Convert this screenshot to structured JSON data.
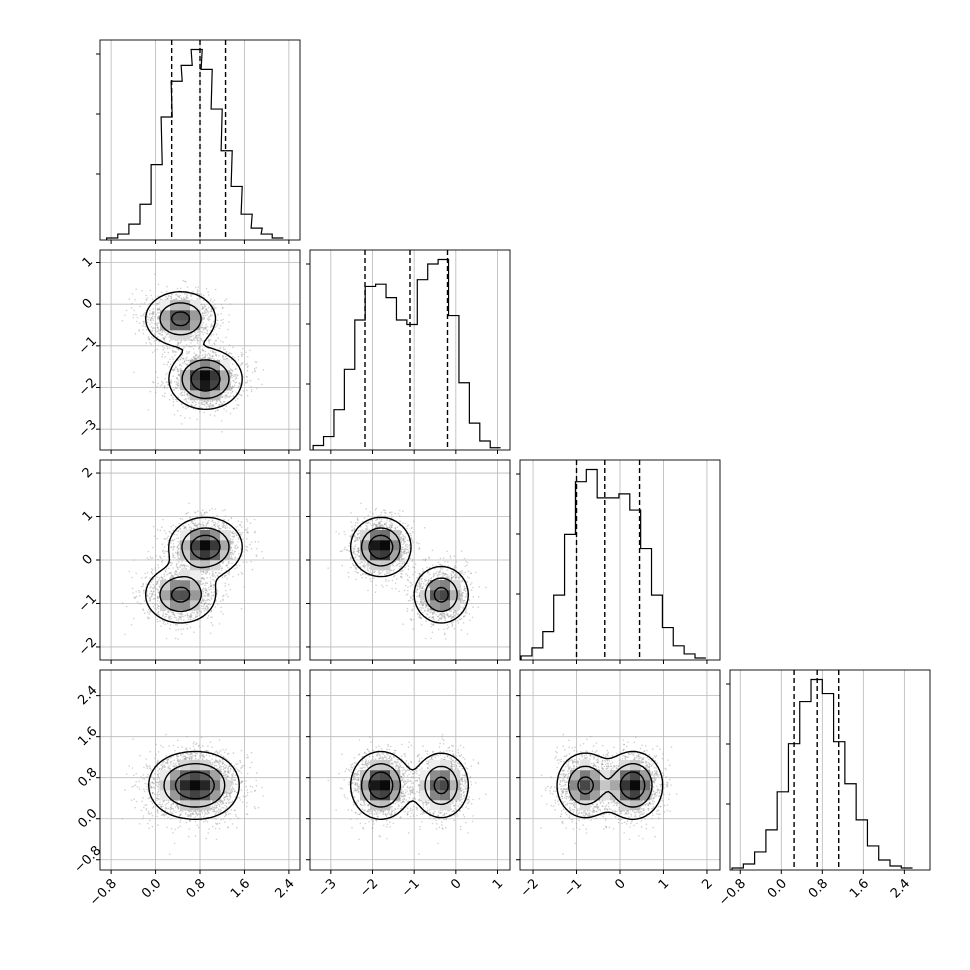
{
  "chart_data": {
    "type": "corner",
    "variables": [
      {
        "range": [
          -1.0,
          2.6
        ],
        "ticks": [
          -0.8,
          0.0,
          0.8,
          1.6,
          2.4
        ],
        "tick_labels": [
          "−0.8",
          "0.0",
          "0.8",
          "1.6",
          "2.4"
        ],
        "quantiles": [
          0.29,
          0.8,
          1.26
        ],
        "hist_bin_centers": [
          -0.78,
          -0.58,
          -0.38,
          -0.18,
          0.02,
          0.2,
          0.38,
          0.56,
          0.74,
          0.92,
          1.1,
          1.28,
          1.46,
          1.64,
          1.82,
          2.0,
          2.2
        ],
        "hist_counts": [
          1,
          3,
          8,
          18,
          38,
          62,
          80,
          88,
          96,
          86,
          66,
          45,
          27,
          13,
          6,
          3,
          1
        ]
      },
      {
        "range": [
          -3.5,
          1.3
        ],
        "ticks": [
          -3,
          -2,
          -1,
          0,
          1
        ],
        "tick_labels": [
          "−3",
          "−2",
          "−1",
          "0",
          "1"
        ],
        "quantiles": [
          -2.18,
          -1.1,
          -0.2
        ],
        "hist_bin_centers": [
          -3.3,
          -3.05,
          -2.8,
          -2.55,
          -2.3,
          -2.05,
          -1.8,
          -1.55,
          -1.3,
          -1.05,
          -0.8,
          -0.55,
          -0.3,
          -0.05,
          0.2,
          0.45,
          0.7,
          0.95
        ],
        "hist_counts": [
          2,
          6,
          18,
          36,
          58,
          73,
          74,
          68,
          58,
          56,
          76,
          83,
          85,
          60,
          30,
          12,
          4,
          1
        ]
      },
      {
        "range": [
          -2.3,
          2.3
        ],
        "ticks": [
          -2,
          -1,
          0,
          1,
          2
        ],
        "tick_labels": [
          "−2",
          "−1",
          "0",
          "1",
          "2"
        ],
        "quantiles": [
          -1.0,
          -0.35,
          0.45
        ],
        "hist_bin_centers": [
          -2.15,
          -1.9,
          -1.65,
          -1.4,
          -1.15,
          -0.9,
          -0.65,
          -0.4,
          -0.15,
          0.1,
          0.35,
          0.6,
          0.85,
          1.1,
          1.35,
          1.6,
          1.85
        ],
        "hist_counts": [
          2,
          6,
          14,
          32,
          62,
          88,
          94,
          80,
          80,
          82,
          74,
          55,
          32,
          16,
          7,
          3,
          1
        ]
      },
      {
        "range": [
          -1.0,
          2.9
        ],
        "ticks": [
          -0.8,
          0.0,
          0.8,
          1.6,
          2.4
        ],
        "tick_labels": [
          "−0.8",
          "0.0",
          "0.8",
          "1.6",
          "2.4"
        ],
        "quantiles": [
          0.25,
          0.7,
          1.12
        ],
        "hist_bin_centers": [
          -0.85,
          -0.63,
          -0.41,
          -0.19,
          0.03,
          0.25,
          0.47,
          0.69,
          0.91,
          1.13,
          1.35,
          1.57,
          1.79,
          2.01,
          2.23,
          2.45
        ],
        "hist_counts": [
          1,
          3,
          9,
          20,
          39,
          63,
          84,
          95,
          88,
          64,
          43,
          25,
          12,
          5,
          2,
          1
        ]
      }
    ],
    "clusters": [
      {
        "weight": 0.45,
        "mean": [
          0.45,
          -0.35,
          -0.8,
          0.65
        ],
        "sd": [
          0.32,
          0.33,
          0.33,
          0.32
        ]
      },
      {
        "weight": 0.55,
        "mean": [
          0.9,
          -1.8,
          0.3,
          0.65
        ],
        "sd": [
          0.32,
          0.35,
          0.33,
          0.32
        ]
      }
    ],
    "grid": true,
    "colors": {
      "points": "#9a9a9a",
      "contour": "#000000",
      "hist_line": "#000000"
    }
  }
}
